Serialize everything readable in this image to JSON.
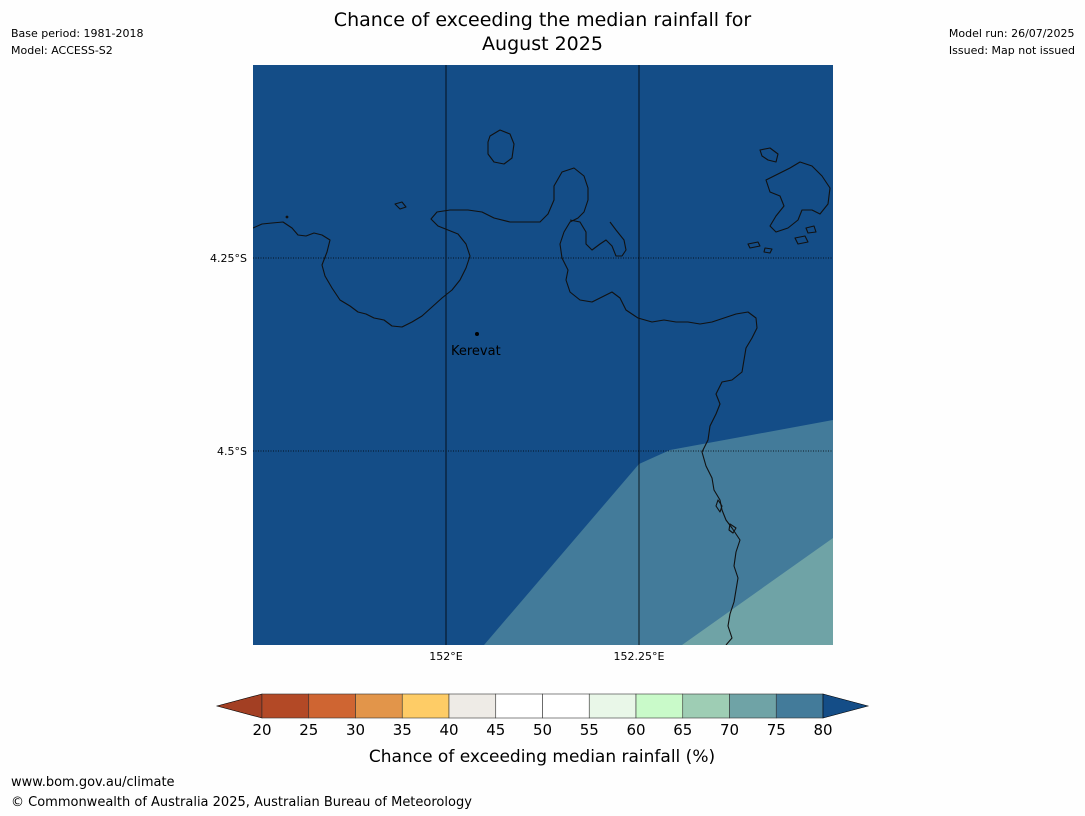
{
  "header": {
    "title_line1": "Chance of exceeding the median rainfall for",
    "title_line2": "August 2025",
    "base_period": "Base period: 1981-2018",
    "model": "Model: ACCESS-S2",
    "model_run": "Model run: 26/07/2025",
    "issued": "Issued: Map not issued"
  },
  "map": {
    "lat_labels": [
      "4.25°S",
      "4.5°S"
    ],
    "lon_labels": [
      "152°E",
      "152.25°E"
    ],
    "place": {
      "name": "Kerevat"
    },
    "colors": {
      "band_80_plus": "#144d87",
      "band_75_80": "#437b9a",
      "band_70_75": "#6fa3a6",
      "coastline": "#111111",
      "gridline": "#000000"
    }
  },
  "legend": {
    "label": "Chance of exceeding median rainfall (%)",
    "ticks": [
      "20",
      "25",
      "30",
      "35",
      "40",
      "45",
      "50",
      "55",
      "60",
      "65",
      "70",
      "75",
      "80"
    ],
    "colors": [
      "#a33f23",
      "#b34926",
      "#cf6532",
      "#e2954a",
      "#fecc66",
      "#eeebe6",
      "#ffffff",
      "#ffffff",
      "#e9f7e8",
      "#c9fac9",
      "#9ecdb4",
      "#6fa3a6",
      "#437b9a",
      "#144d87"
    ]
  },
  "footer": {
    "url": "www.bom.gov.au/climate",
    "copyright": "© Commonwealth of Australia 2025, Australian Bureau of Meteorology"
  }
}
